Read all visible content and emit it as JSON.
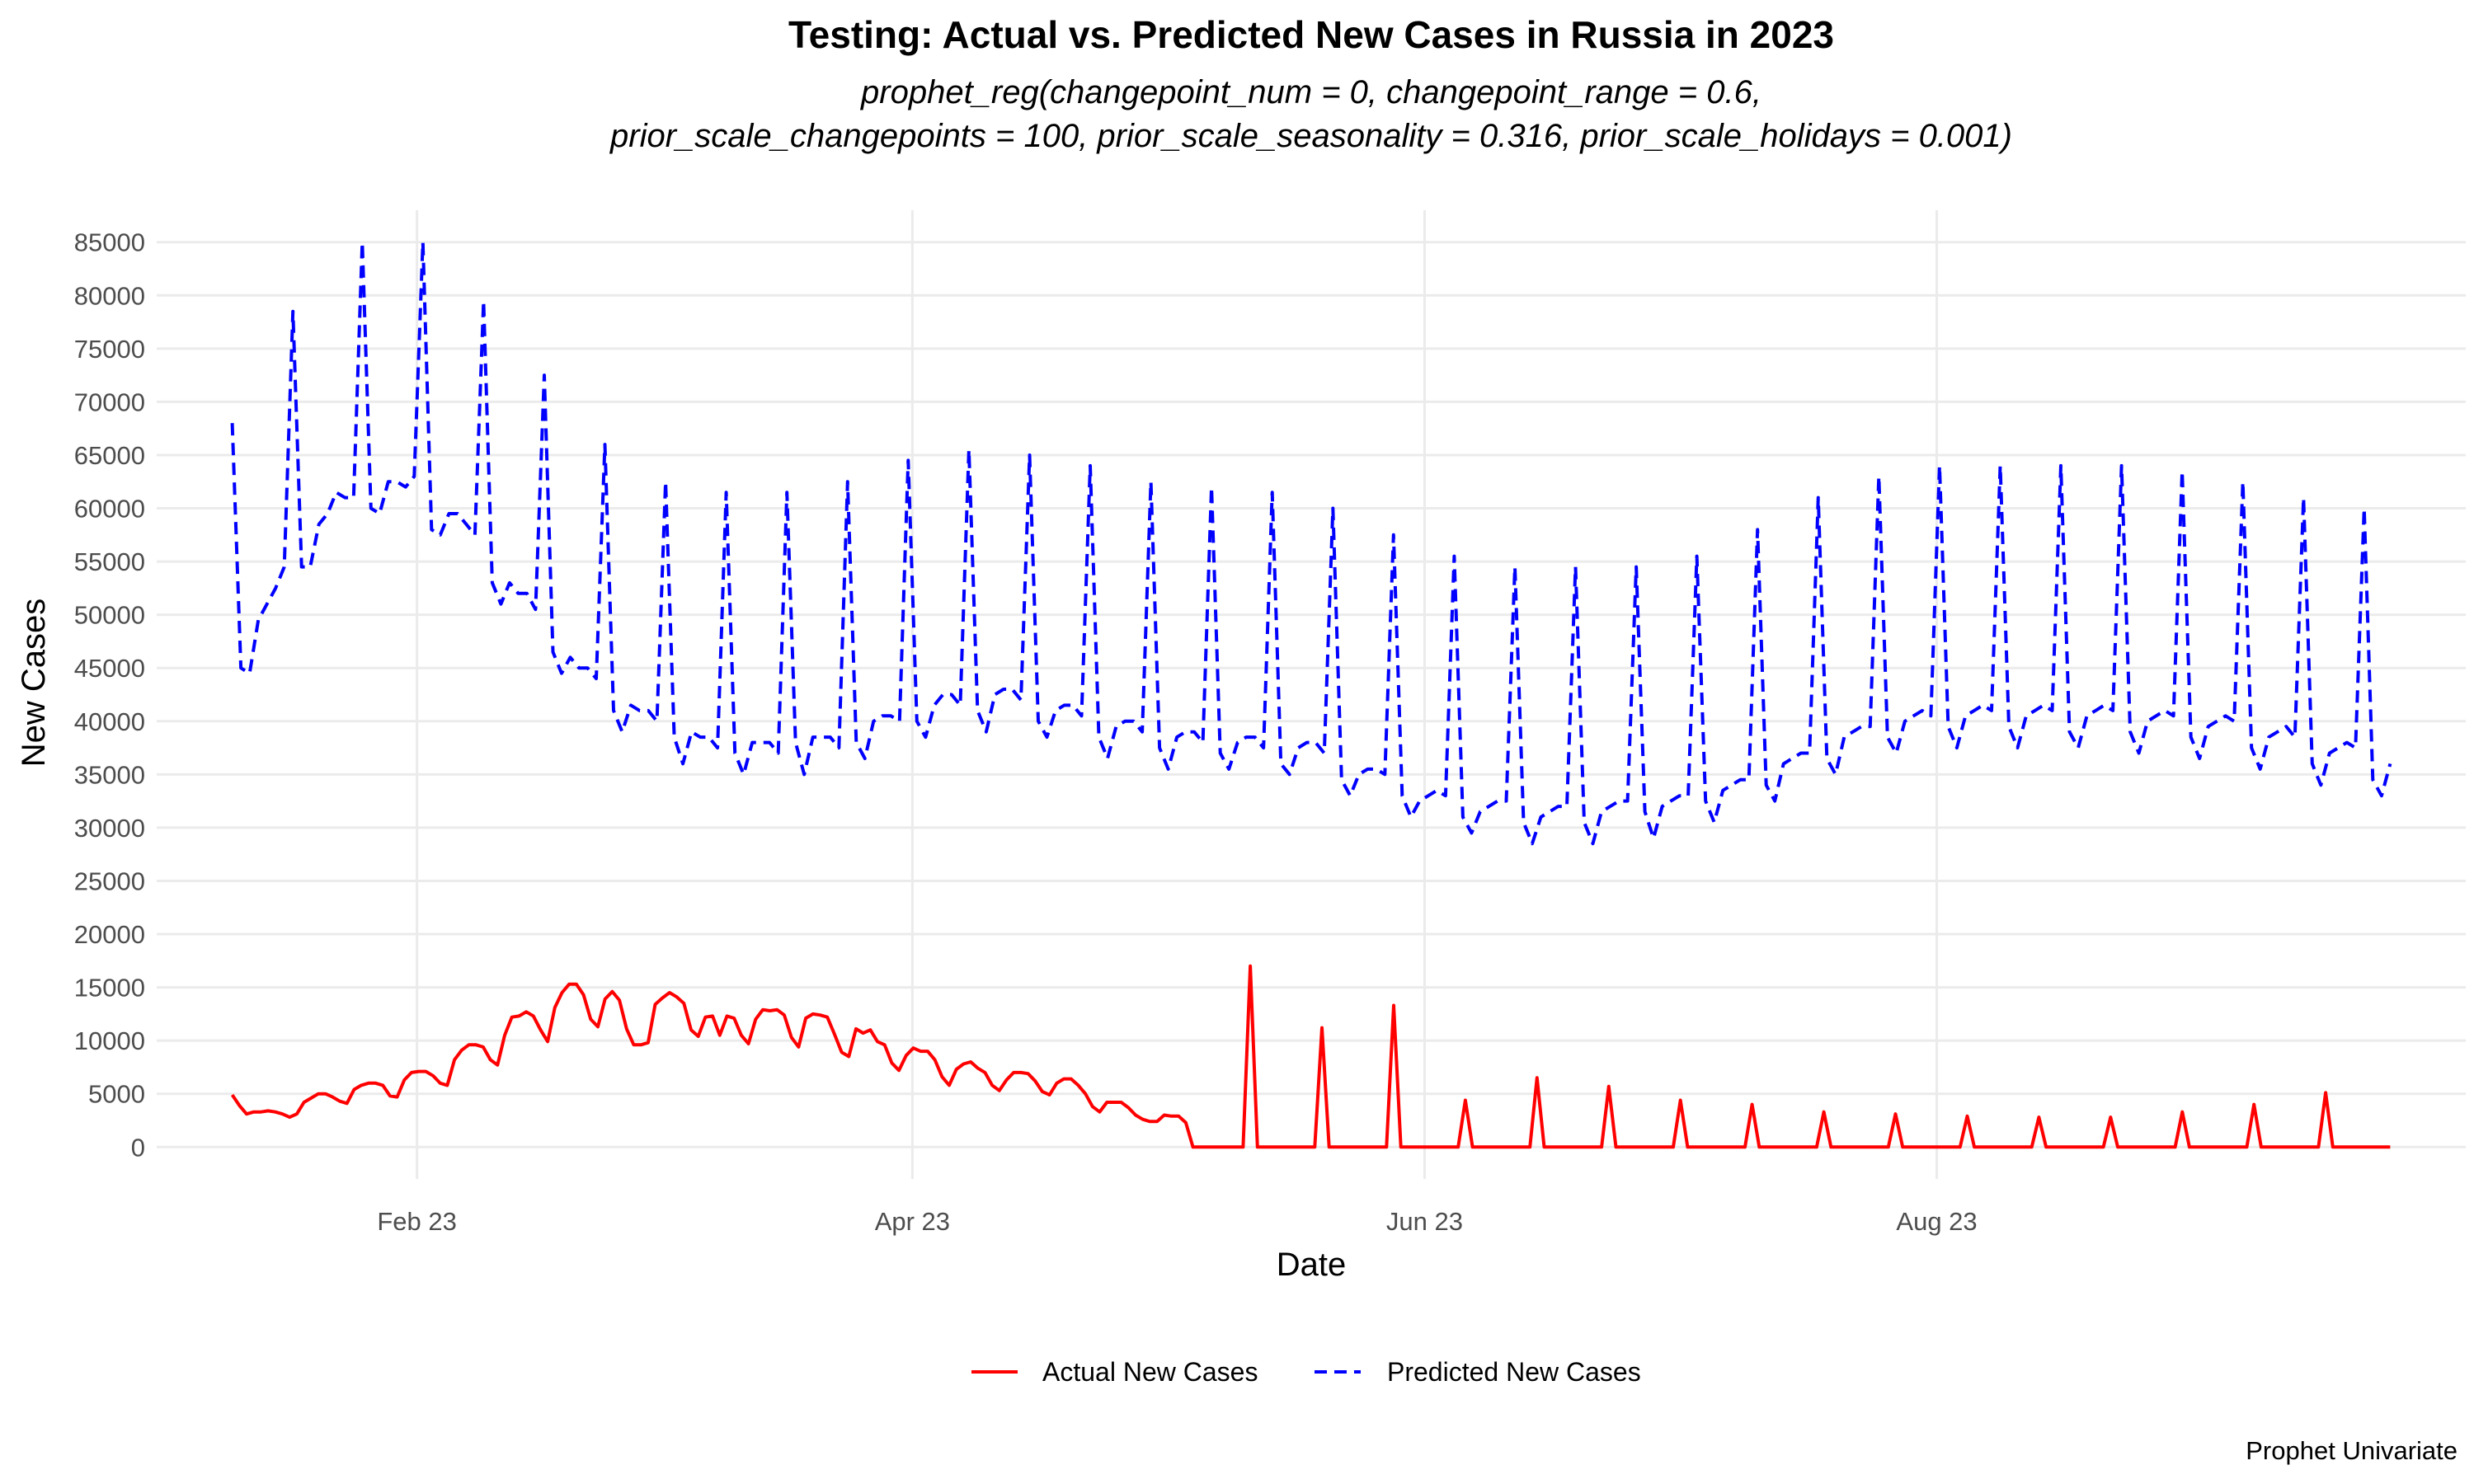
{
  "chart_data": {
    "type": "line",
    "title": "Testing: Actual vs. Predicted New Cases in Russia in 2023",
    "subtitle_lines": [
      "prophet_reg(changepoint_num = 0, changepoint_range = 0.6,",
      "prior_scale_changepoints = 100, prior_scale_seasonality = 0.316, prior_scale_holidays = 0.001)"
    ],
    "xlabel": "Date",
    "ylabel": "New Cases",
    "caption": "Prophet Univariate",
    "x_start": "2023-01-10",
    "x_end": "2023-09-24",
    "xlim": [
      "2023-01-01",
      "2023-10-03"
    ],
    "x_ticks": [
      {
        "date": "2023-02-01",
        "label": "Feb 23"
      },
      {
        "date": "2023-04-01",
        "label": "Apr 23"
      },
      {
        "date": "2023-06-01",
        "label": "Jun 23"
      },
      {
        "date": "2023-08-01",
        "label": "Aug 23"
      }
    ],
    "ylim": [
      -3000,
      88000
    ],
    "y_ticks": [
      0,
      5000,
      10000,
      15000,
      20000,
      25000,
      30000,
      35000,
      40000,
      45000,
      50000,
      55000,
      60000,
      65000,
      70000,
      75000,
      80000,
      85000
    ],
    "grid": true,
    "legend_position": "bottom",
    "series": [
      {
        "name": "Actual New Cases",
        "color": "#ff0000",
        "dash": "solid",
        "values": [
          4900,
          3900,
          3100,
          3300,
          3300,
          3400,
          3300,
          3100,
          2800,
          3100,
          4200,
          4600,
          5000,
          5000,
          4700,
          4300,
          4100,
          5400,
          5800,
          6000,
          6000,
          5800,
          4800,
          4700,
          6300,
          7000,
          7100,
          7100,
          6700,
          6000,
          5800,
          8200,
          9100,
          9600,
          9600,
          9400,
          8200,
          7700,
          10500,
          12200,
          12300,
          12700,
          12300,
          11000,
          9900,
          13100,
          14500,
          15300,
          15300,
          14300,
          12000,
          11300,
          13900,
          14600,
          13800,
          11100,
          9600,
          9600,
          9800,
          13400,
          14000,
          14500,
          14100,
          13500,
          11000,
          10400,
          12200,
          12300,
          10500,
          12300,
          12100,
          10500,
          9700,
          12000,
          12900,
          12800,
          12900,
          12400,
          10300,
          9400,
          12100,
          12500,
          12400,
          12200,
          10600,
          8900,
          8500,
          11100,
          10700,
          11000,
          9900,
          9600,
          7900,
          7200,
          8600,
          9300,
          9000,
          9000,
          8200,
          6600,
          5800,
          7300,
          7800,
          8000,
          7400,
          7000,
          5800,
          5300,
          6300,
          7000,
          7000,
          6900,
          6200,
          5200,
          4900,
          6000,
          6400,
          6400,
          5800,
          5000,
          3800,
          3300,
          4200,
          4200,
          4200,
          3700,
          3000,
          2600,
          2400,
          2400,
          3000,
          2900,
          2900,
          2300,
          0,
          0,
          0,
          0,
          0,
          0,
          0,
          0,
          17000,
          0,
          0,
          0,
          0,
          0,
          0,
          0,
          0,
          0,
          11200,
          0,
          0,
          0,
          0,
          0,
          0,
          0,
          0,
          0,
          13300,
          0,
          0,
          0,
          0,
          0,
          0,
          0,
          0,
          0,
          4400,
          0,
          0,
          0,
          0,
          0,
          0,
          0,
          0,
          0,
          6500,
          0,
          0,
          0,
          0,
          0,
          0,
          0,
          0,
          0,
          5700,
          0,
          0,
          0,
          0,
          0,
          0,
          0,
          0,
          0,
          4400,
          0,
          0,
          0,
          0,
          0,
          0,
          0,
          0,
          0,
          4000,
          0,
          0,
          0,
          0,
          0,
          0,
          0,
          0,
          0,
          3300,
          0,
          0,
          0,
          0,
          0,
          0,
          0,
          0,
          0,
          3100,
          0,
          0,
          0,
          0,
          0,
          0,
          0,
          0,
          0,
          2900,
          0,
          0,
          0,
          0,
          0,
          0,
          0,
          0,
          0,
          2800,
          0,
          0,
          0,
          0,
          0,
          0,
          0,
          0,
          0,
          2800,
          0,
          0,
          0,
          0,
          0,
          0,
          0,
          0,
          0,
          3300,
          0,
          0,
          0,
          0,
          0,
          0,
          0,
          0,
          0,
          4000,
          0,
          0,
          0,
          0,
          0,
          0,
          0,
          0,
          0,
          5100,
          0,
          0,
          0,
          0,
          0,
          0,
          0,
          0,
          0
        ]
      },
      {
        "name": "Predicted New Cases",
        "color": "#0000ff",
        "dash": "dashed",
        "values": [
          68000,
          45000,
          44500,
          49500,
          51000,
          52500,
          54500,
          78500,
          54500,
          54500,
          58500,
          59500,
          61500,
          61000,
          61000,
          85000,
          60000,
          59500,
          62500,
          62500,
          62000,
          63000,
          85000,
          58000,
          57500,
          59500,
          59500,
          58500,
          57500,
          79500,
          53000,
          51000,
          53000,
          52000,
          52000,
          50500,
          72500,
          46500,
          44500,
          46000,
          45000,
          45000,
          44000,
          66000,
          41000,
          39000,
          41500,
          41000,
          41000,
          40000,
          62500,
          38500,
          36000,
          39000,
          38500,
          38500,
          37500,
          61500,
          37000,
          35000,
          38000,
          38000,
          38000,
          37000,
          61500,
          38000,
          35000,
          38500,
          38500,
          38500,
          37500,
          62500,
          38000,
          36500,
          40000,
          40500,
          40500,
          40000,
          64500,
          40000,
          38500,
          41500,
          42500,
          42500,
          41500,
          65500,
          41000,
          39000,
          42500,
          43000,
          43000,
          42000,
          65000,
          40000,
          38500,
          41000,
          41500,
          41500,
          40500,
          64000,
          38500,
          36500,
          39500,
          40000,
          40000,
          39000,
          62500,
          37500,
          35500,
          38500,
          39000,
          39000,
          38000,
          62000,
          37000,
          35500,
          38000,
          38500,
          38500,
          37500,
          61500,
          36000,
          35000,
          37500,
          38000,
          38000,
          37000,
          60000,
          34500,
          33000,
          35000,
          35500,
          35500,
          35000,
          57500,
          33000,
          31000,
          32500,
          33000,
          33500,
          33000,
          55500,
          31000,
          29500,
          31500,
          32000,
          32500,
          32500,
          54500,
          30500,
          28500,
          31000,
          31500,
          32000,
          32000,
          54500,
          30500,
          28500,
          31500,
          32000,
          32500,
          32500,
          54500,
          31500,
          29000,
          32000,
          32500,
          33000,
          33000,
          55500,
          32500,
          30500,
          33500,
          34000,
          34500,
          34500,
          58000,
          34000,
          32500,
          36000,
          36500,
          37000,
          37000,
          61000,
          36500,
          35000,
          38500,
          39000,
          39500,
          39500,
          63000,
          38500,
          37000,
          40000,
          40500,
          41000,
          40500,
          64000,
          39500,
          37500,
          40500,
          41000,
          41500,
          41000,
          64000,
          39500,
          37500,
          40500,
          41000,
          41500,
          41000,
          64000,
          39000,
          37500,
          40500,
          41000,
          41500,
          41000,
          64000,
          39000,
          37000,
          40000,
          40500,
          41000,
          40500,
          63500,
          38500,
          36500,
          39500,
          40000,
          40500,
          40000,
          62500,
          37500,
          35500,
          38500,
          39000,
          39500,
          38500,
          61000,
          36000,
          34000,
          37000,
          37500,
          38000,
          37500,
          60000,
          34500,
          33000,
          36000
        ]
      }
    ]
  }
}
